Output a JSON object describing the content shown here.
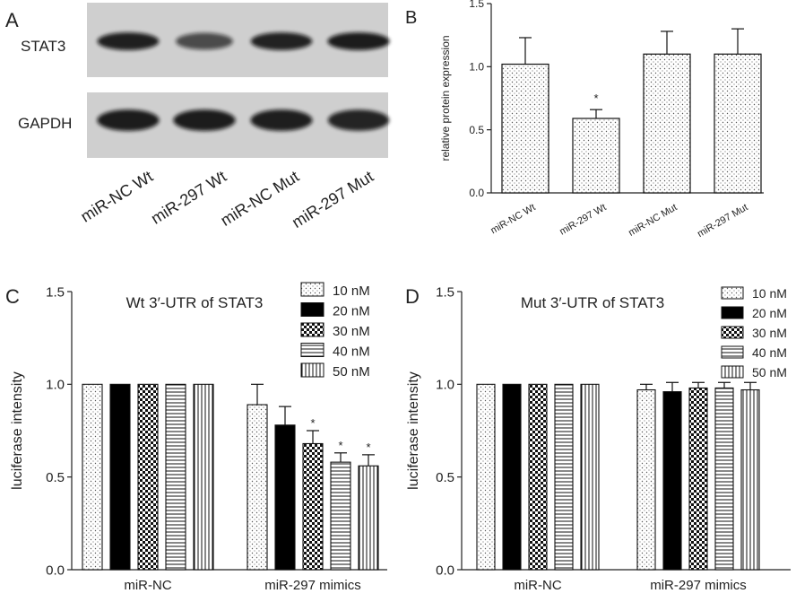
{
  "panels": {
    "A": {
      "letter": "A",
      "blot_rows": [
        "STAT3",
        "GAPDH"
      ],
      "lanes": [
        "miR-NC Wt",
        "miR-297 Wt",
        "miR-NC Mut",
        "miR-297 Mut"
      ],
      "band_intensity": {
        "STAT3": [
          0.92,
          0.55,
          0.9,
          0.95
        ],
        "GAPDH": [
          0.95,
          0.95,
          0.93,
          0.88
        ]
      }
    },
    "B": {
      "letter": "B"
    },
    "C": {
      "letter": "C"
    },
    "D": {
      "letter": "D"
    }
  },
  "chart_data": [
    {
      "id": "B",
      "type": "bar",
      "title": "",
      "xlabel": "",
      "ylabel": "relative protein expression",
      "ylim": [
        0,
        1.5
      ],
      "yticks": [
        "0.0",
        "0.5",
        "1.0",
        "1.5"
      ],
      "categories": [
        "miR-NC Wt",
        "miR-297 Wt",
        "miR-NC Mut",
        "miR-297 Mut"
      ],
      "values": [
        1.02,
        0.59,
        1.1,
        1.1
      ],
      "errors": [
        0.21,
        0.07,
        0.18,
        0.2
      ],
      "significance": [
        "",
        "*",
        "",
        ""
      ],
      "pattern": "dots",
      "grid": false
    },
    {
      "id": "C",
      "type": "bar",
      "title": "Wt 3′-UTR of STAT3",
      "xlabel": "",
      "ylabel": "luciferase intensity",
      "ylim": [
        0,
        1.5
      ],
      "yticks": [
        "0.0",
        "0.5",
        "1.0",
        "1.5"
      ],
      "categories": [
        "miR-NC",
        "miR-297 mimics"
      ],
      "legend_position": "top-right",
      "series": [
        {
          "name": "10 nM",
          "pattern": "dots",
          "values": [
            1.0,
            0.89
          ],
          "errors": [
            0,
            0.11
          ],
          "significance": [
            "",
            ""
          ]
        },
        {
          "name": "20 nM",
          "pattern": "solid",
          "values": [
            1.0,
            0.78
          ],
          "errors": [
            0,
            0.1
          ],
          "significance": [
            "",
            ""
          ]
        },
        {
          "name": "30 nM",
          "pattern": "checker",
          "values": [
            1.0,
            0.68
          ],
          "errors": [
            0,
            0.07
          ],
          "significance": [
            "",
            "*"
          ]
        },
        {
          "name": "40 nM",
          "pattern": "hlines",
          "values": [
            1.0,
            0.58
          ],
          "errors": [
            0,
            0.05
          ],
          "significance": [
            "",
            "*"
          ]
        },
        {
          "name": "50 nM",
          "pattern": "vlines",
          "values": [
            1.0,
            0.56
          ],
          "errors": [
            0,
            0.06
          ],
          "significance": [
            "",
            "*"
          ]
        }
      ],
      "grid": false
    },
    {
      "id": "D",
      "type": "bar",
      "title": "Mut 3′-UTR of STAT3",
      "xlabel": "",
      "ylabel": "luciferase intensity",
      "ylim": [
        0,
        1.5
      ],
      "yticks": [
        "0.0",
        "0.5",
        "1.0",
        "1.5"
      ],
      "categories": [
        "miR-NC",
        "miR-297 mimics"
      ],
      "legend_position": "top-right",
      "series": [
        {
          "name": "10 nM",
          "pattern": "dots",
          "values": [
            1.0,
            0.97
          ],
          "errors": [
            0,
            0.03
          ],
          "significance": [
            "",
            ""
          ]
        },
        {
          "name": "20 nM",
          "pattern": "solid",
          "values": [
            1.0,
            0.96
          ],
          "errors": [
            0,
            0.05
          ],
          "significance": [
            "",
            ""
          ]
        },
        {
          "name": "30 nM",
          "pattern": "checker",
          "values": [
            1.0,
            0.98
          ],
          "errors": [
            0,
            0.03
          ],
          "significance": [
            "",
            ""
          ]
        },
        {
          "name": "40 nM",
          "pattern": "hlines",
          "values": [
            1.0,
            0.98
          ],
          "errors": [
            0,
            0.03
          ],
          "significance": [
            "",
            ""
          ]
        },
        {
          "name": "50 nM",
          "pattern": "vlines",
          "values": [
            1.0,
            0.97
          ],
          "errors": [
            0,
            0.04
          ],
          "significance": [
            "",
            ""
          ]
        }
      ],
      "grid": false
    }
  ]
}
